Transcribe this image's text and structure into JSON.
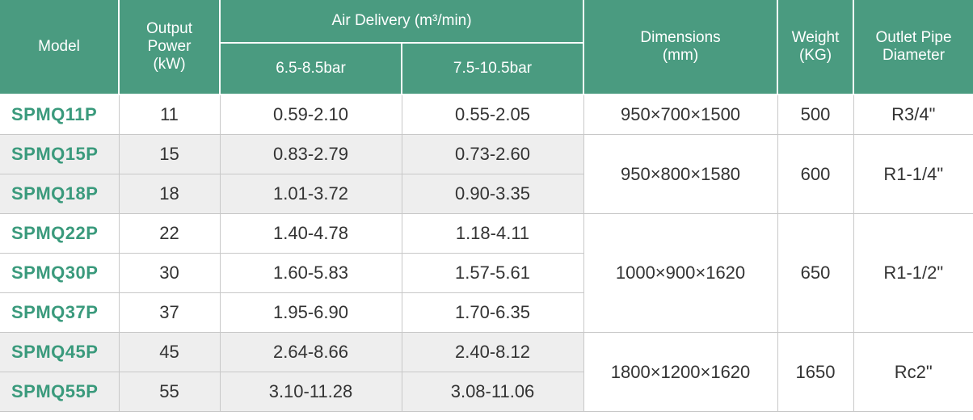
{
  "header": {
    "model": "Model",
    "power": [
      "Output",
      "Power",
      "(kW)"
    ],
    "air_delivery": "Air Delivery (m³/min)",
    "pressures": [
      "6.5-8.5bar",
      "7.5-10.5bar"
    ],
    "dimensions": [
      "Dimensions",
      "(mm)"
    ],
    "weight": [
      "Weight",
      "(KG)"
    ],
    "outlet": [
      "Outlet Pipe",
      "Diameter"
    ]
  },
  "groups": [
    {
      "rows": [
        [
          "SPMQ11P",
          "11",
          "0.59-2.10",
          "0.55-2.05"
        ]
      ],
      "dimensions": "950×700×1500",
      "weight": "500",
      "outlet": "R3/4\""
    },
    {
      "rows": [
        [
          "SPMQ15P",
          "15",
          "0.83-2.79",
          "0.73-2.60"
        ],
        [
          "SPMQ18P",
          "18",
          "1.01-3.72",
          "0.90-3.35"
        ]
      ],
      "dimensions": "950×800×1580",
      "weight": "600",
      "outlet": "R1-1/4\""
    },
    {
      "rows": [
        [
          "SPMQ22P",
          "22",
          "1.40-4.78",
          "1.18-4.11"
        ],
        [
          "SPMQ30P",
          "30",
          "1.60-5.83",
          "1.57-5.61"
        ],
        [
          "SPMQ37P",
          "37",
          "1.95-6.90",
          "1.70-6.35"
        ]
      ],
      "dimensions": "1000×900×1620",
      "weight": "650",
      "outlet": "R1-1/2\""
    },
    {
      "rows": [
        [
          "SPMQ45P",
          "45",
          "2.64-8.66",
          "2.40-8.12"
        ],
        [
          "SPMQ55P",
          "55",
          "3.10-11.28",
          "3.08-11.06"
        ]
      ],
      "dimensions": "1800×1200×1620",
      "weight": "1650",
      "outlet": "Rc2\""
    }
  ]
}
